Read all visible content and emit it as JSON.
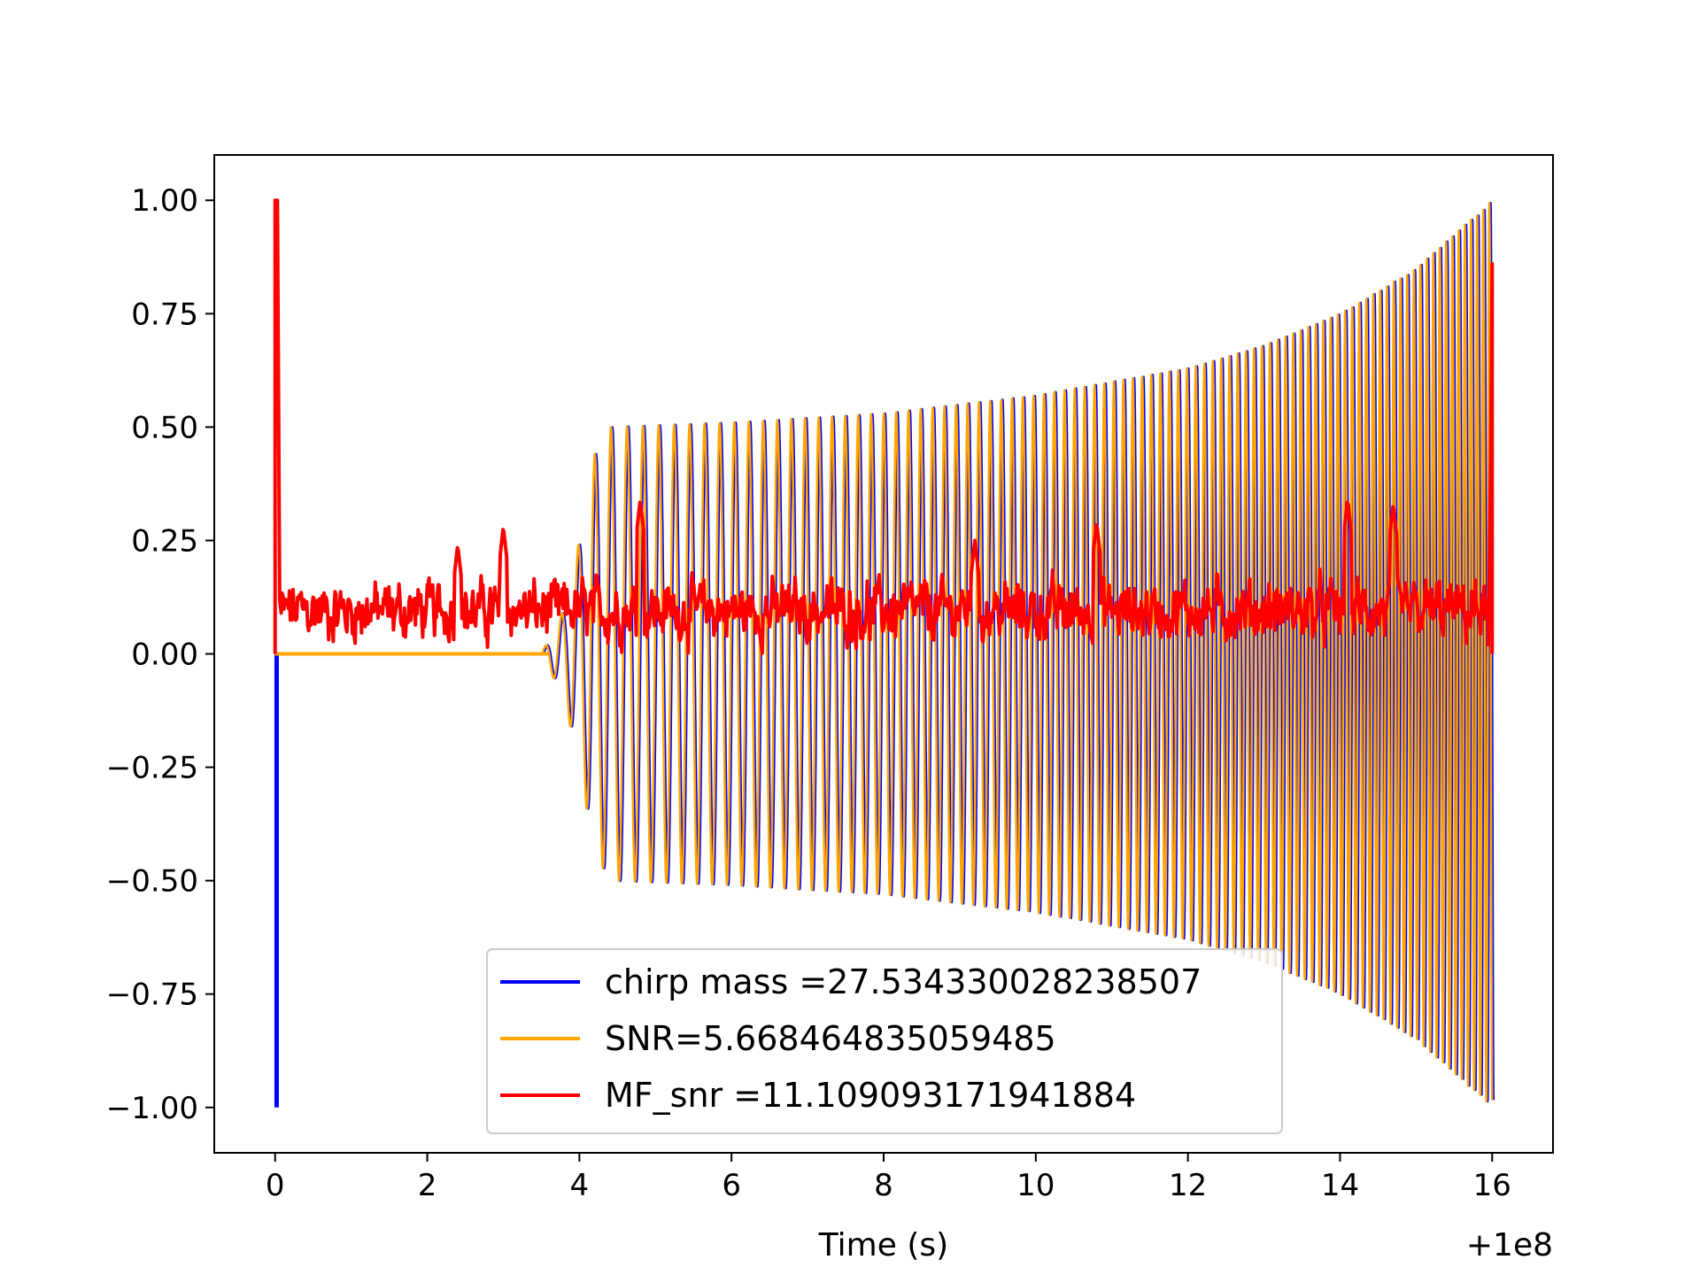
{
  "chart_data": {
    "type": "line",
    "title": "",
    "xlabel": "Time (s)",
    "ylabel": "",
    "x_offset_label": "+1e8",
    "xlim": [
      -0.8,
      16.8
    ],
    "ylim": [
      -1.1,
      1.1
    ],
    "x_ticks": [
      0,
      2,
      4,
      6,
      8,
      10,
      12,
      14,
      16
    ],
    "x_tick_labels": [
      "0",
      "2",
      "4",
      "6",
      "8",
      "10",
      "12",
      "14",
      "16"
    ],
    "y_ticks": [
      1.0,
      0.75,
      0.5,
      0.25,
      0.0,
      -0.25,
      -0.5,
      -0.75,
      -1.0
    ],
    "y_tick_labels": [
      "1.00",
      "0.75",
      "0.50",
      "0.25",
      "0.00",
      "−0.25",
      "−0.50",
      "−0.75",
      "−1.00"
    ],
    "grid": false,
    "legend_position": "bottom-center",
    "series": [
      {
        "name": "chirp mass =27.534330028238507",
        "color": "#0000ff",
        "description_points": {
          "spike_x": 0.02,
          "spike_range": [
            -1.0,
            0.0
          ],
          "envelope": [
            [
              3.5,
              0.0
            ],
            [
              4.4,
              0.5
            ],
            [
              10,
              0.6
            ],
            [
              14,
              0.75
            ],
            [
              16,
              1.0
            ]
          ]
        }
      },
      {
        "name": "SNR=5.668464835059485",
        "color": "#ffa500",
        "envelope": [
          [
            0.0,
            0.0
          ],
          [
            3.5,
            0.0
          ],
          [
            3.8,
            0.1
          ],
          [
            4.0,
            0.25
          ],
          [
            4.2,
            0.44
          ],
          [
            4.4,
            0.5
          ],
          [
            6,
            0.51
          ],
          [
            8,
            0.53
          ],
          [
            10,
            0.57
          ],
          [
            12,
            0.63
          ],
          [
            13,
            0.68
          ],
          [
            14,
            0.75
          ],
          [
            15,
            0.85
          ],
          [
            15.6,
            0.94
          ],
          [
            16.0,
            1.0
          ]
        ]
      },
      {
        "name": "MF_snr =11.109093171941884",
        "color": "#ff0000",
        "peaks": [
          [
            0.0,
            1.0
          ],
          [
            0.1,
            0.12
          ],
          [
            2.4,
            0.24
          ],
          [
            3.0,
            0.28
          ],
          [
            4.8,
            0.34
          ],
          [
            9.2,
            0.25
          ],
          [
            10.8,
            0.29
          ],
          [
            14.1,
            0.34
          ],
          [
            14.7,
            0.33
          ],
          [
            16.0,
            0.86
          ]
        ],
        "baseline_range": [
          0.0,
          0.2
        ]
      }
    ]
  }
}
